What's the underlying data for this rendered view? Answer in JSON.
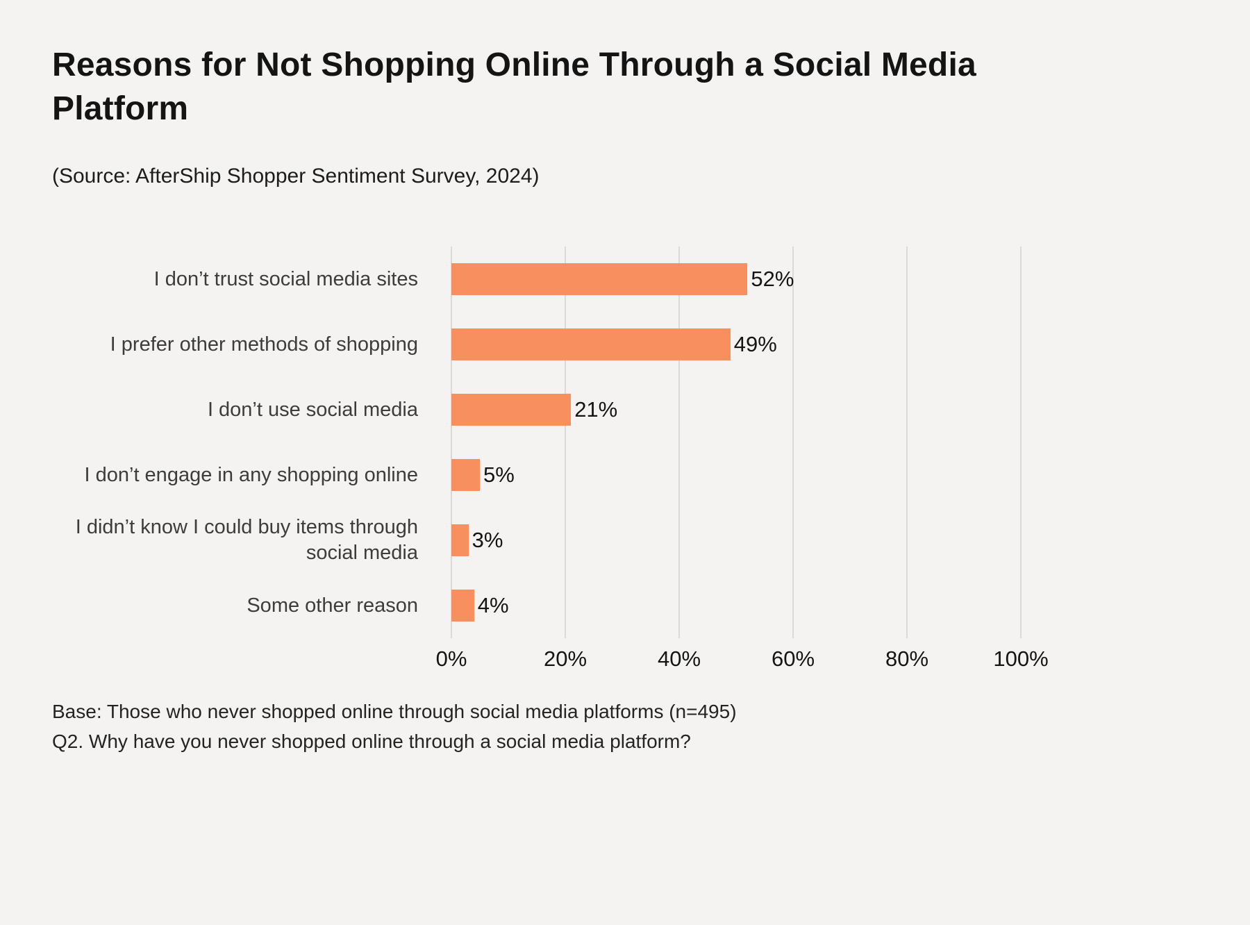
{
  "header": {
    "title": "Reasons for Not Shopping Online Through a Social Media Platform",
    "source": "(Source: AfterShip Shopper Sentiment Survey, 2024)"
  },
  "chart_data": {
    "type": "bar",
    "orientation": "horizontal",
    "title": "Reasons for Not Shopping Online Through a Social Media Platform",
    "categories": [
      "I don’t trust social media sites",
      "I prefer other methods of shopping",
      "I don’t use social media",
      "I don’t engage in any shopping online",
      "I didn’t know I could buy items through social media",
      "Some other reason"
    ],
    "values": [
      52,
      49,
      21,
      5,
      3,
      4
    ],
    "value_labels": [
      "52%",
      "49%",
      "21%",
      "5%",
      "3%",
      "4%"
    ],
    "xlabel": "",
    "ylabel": "",
    "xlim": [
      0,
      100
    ],
    "x_ticks": [
      "0%",
      "20%",
      "40%",
      "60%",
      "80%",
      "100%"
    ],
    "grid": true,
    "legend_position": "none",
    "bar_color": "#F88F5E"
  },
  "footer": {
    "base_note": "Base: Those who never shopped online through social media platforms (n=495)",
    "question_note": "Q2. Why have you never shopped online through a social media platform?"
  },
  "colors": {
    "background": "#F4F3F1",
    "bar": "#F88F5E",
    "gridline": "#DBDAD8",
    "title_text": "#141414",
    "label_text": "#3C3C3C"
  }
}
